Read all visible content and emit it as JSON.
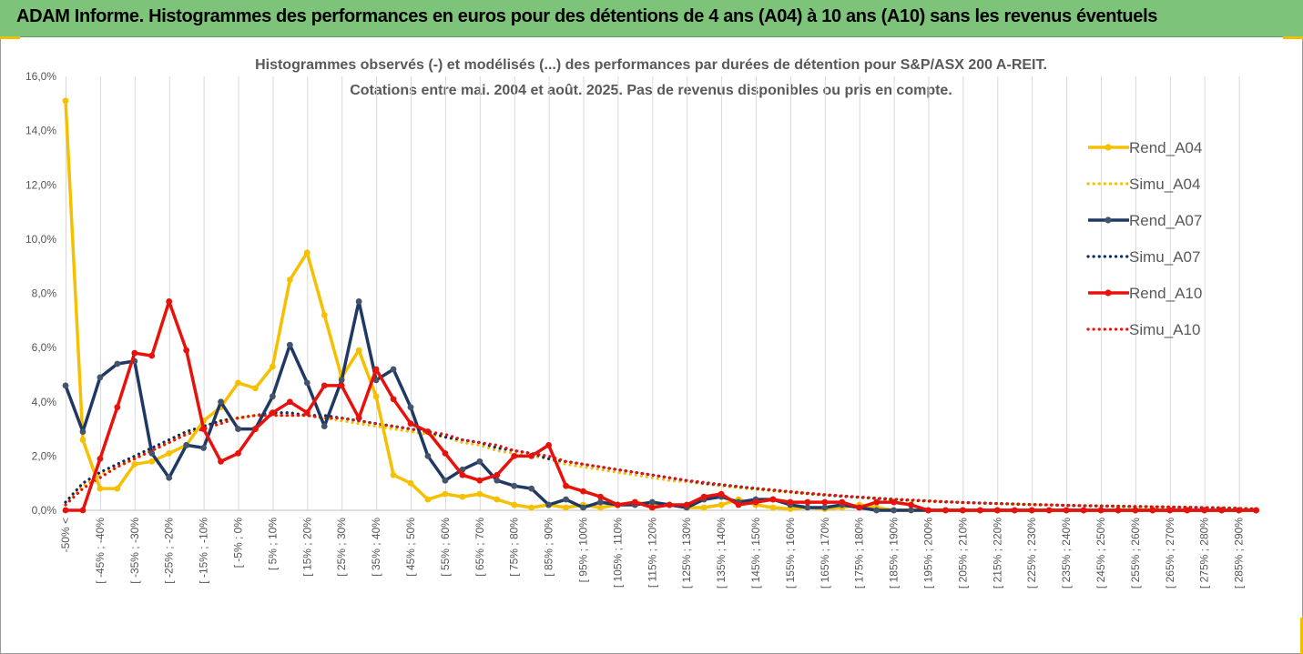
{
  "header": {
    "title": "ADAM Informe. Histogrammes des performances en euros pour des détentions de 4 ans (A04) à 10 ans (A10) sans les revenus éventuels"
  },
  "chart_data": {
    "type": "line",
    "title_lines": [
      "Histogrammes observés (-) et modélisés (...) des performances par durées de détention pour S&P/ASX 200 A-REIT.",
      "Cotations entre mai. 2004 et août. 2025. Pas de revenus disponibles ou pris en compte."
    ],
    "ylim": [
      0,
      0.16
    ],
    "yticks": [
      0,
      0.02,
      0.04,
      0.06,
      0.08,
      0.1,
      0.12,
      0.14,
      0.16
    ],
    "ytick_labels": [
      "0,0%",
      "2,0%",
      "4,0%",
      "6,0%",
      "8,0%",
      "10,0%",
      "12,0%",
      "14,0%",
      "16,0%"
    ],
    "grid": "vertical",
    "legend_position": "right",
    "categories": [
      "-50% <",
      "[ -50% ; -45%",
      "[ -45% ; -40%",
      "[ -40% ; -35%",
      "[ -35% ; -30%",
      "[ -30% ; -25%",
      "[ -25% ; -20%",
      "[ -20% ; -15%",
      "[ -15% ; -10%",
      "[ -10% ; -5%",
      "[ -5% ; 0%",
      "[ 0% ; 5%",
      "[ 5% ; 10%",
      "[ 10% ; 15%",
      "[ 15% ; 20%",
      "[ 20% ; 25%",
      "[ 25% ; 30%",
      "[ 30% ; 35%",
      "[ 35% ; 40%",
      "[ 40% ; 45%",
      "[ 45% ; 50%",
      "[ 50% ; 55%",
      "[ 55% ; 60%",
      "[ 60% ; 65%",
      "[ 65% ; 70%",
      "[ 70% ; 75%",
      "[ 75% ; 80%",
      "[ 80% ; 85%",
      "[ 85% ; 90%",
      "[ 90% ; 95%",
      "[ 95% ; 100%",
      "[ 100% ; 105%",
      "[ 105% ; 110%",
      "[ 110% ; 115%",
      "[ 115% ; 120%",
      "[ 120% ; 125%",
      "[ 125% ; 130%",
      "[ 130% ; 135%",
      "[ 135% ; 140%",
      "[ 140% ; 145%",
      "[ 145% ; 150%",
      "[ 150% ; 155%",
      "[ 155% ; 160%",
      "[ 160% ; 165%",
      "[ 165% ; 170%",
      "[ 170% ; 175%",
      "[ 175% ; 180%",
      "[ 180% ; 185%",
      "[ 185% ; 190%",
      "[ 190% ; 195%",
      "[ 195% ; 200%",
      "[ 200% ; 205%",
      "[ 205% ; 210%",
      "[ 210% ; 215%",
      "[ 215% ; 220%",
      "[ 220% ; 225%",
      "[ 225% ; 230%",
      "[ 230% ; 235%",
      "[ 235% ; 240%",
      "[ 240% ; 245%",
      "[ 245% ; 250%",
      "[ 250% ; 255%",
      "[ 255% ; 260%",
      "[ 260% ; 265%",
      "[ 265% ; 270%",
      "[ 270% ; 275%",
      "[ 275% ; 280%",
      "[ 280% ; 285%",
      "[ 285% ; 290%",
      "[ 290% ; 295%"
    ],
    "shown_labels": [
      "-50% <",
      "[ -45% ; -40%",
      "[ -35% ; -30%",
      "[ -25% ; -20%",
      "[ -15% ; -10%",
      "[ -5% ; 0%",
      "[ 5% ; 10%",
      "[ 15% ; 20%",
      "[ 25% ; 30%",
      "[ 35% ; 40%",
      "[ 45% ; 50%",
      "[ 55% ; 60%",
      "[ 65% ; 70%",
      "[ 75% ; 80%",
      "[ 85% ; 90%",
      "[ 95% ; 100%",
      "[ 105% ; 110%",
      "[ 115% ; 120%",
      "[ 125% ; 130%",
      "[ 135% ; 140%",
      "[ 145% ; 150%",
      "[ 155% ; 160%",
      "[ 165% ; 170%",
      "[ 175% ; 180%",
      "[ 185% ; 190%",
      "[ 195% ; 200%",
      "[ 205% ; 210%",
      "[ 215% ; 220%",
      "[ 225% ; 230%",
      "[ 235% ; 240%",
      "[ 245% ; 250%",
      "[ 255% ; 260%",
      "[ 265% ; 270%",
      "[ 275% ; 280%",
      "[ 285% ; 290%"
    ],
    "series": [
      {
        "name": "Simu_A04",
        "style": "dotted",
        "color": "#f5c000",
        "values": [
          0.002,
          0.009,
          0.013,
          0.016,
          0.019,
          0.022,
          0.025,
          0.028,
          0.031,
          0.033,
          0.034,
          0.035,
          0.035,
          0.035,
          0.035,
          0.034,
          0.033,
          0.032,
          0.031,
          0.03,
          0.029,
          0.028,
          0.027,
          0.025,
          0.024,
          0.022,
          0.021,
          0.02,
          0.019,
          0.017,
          0.016,
          0.015,
          0.014,
          0.013,
          0.012,
          0.011,
          0.0105,
          0.0097,
          0.009,
          0.0083,
          0.0077,
          0.0071,
          0.0066,
          0.006,
          0.0055,
          0.0051,
          0.0047,
          0.0043,
          0.0039,
          0.0036,
          0.0033,
          0.0031,
          0.0028,
          0.0026,
          0.0024,
          0.0022,
          0.002,
          0.0019,
          0.0018,
          0.0016,
          0.0015,
          0.0014,
          0.0013,
          0.0012,
          0.0011,
          0.001,
          0.0009,
          0.0008,
          0.0006,
          0.0004
        ]
      },
      {
        "name": "Simu_A07",
        "style": "dotted",
        "color": "#0d2a5c",
        "values": [
          0.003,
          0.01,
          0.014,
          0.017,
          0.02,
          0.023,
          0.026,
          0.029,
          0.031,
          0.033,
          0.034,
          0.035,
          0.036,
          0.036,
          0.035,
          0.035,
          0.034,
          0.033,
          0.032,
          0.031,
          0.03,
          0.029,
          0.027,
          0.026,
          0.025,
          0.023,
          0.022,
          0.021,
          0.019,
          0.018,
          0.017,
          0.016,
          0.015,
          0.014,
          0.013,
          0.012,
          0.011,
          0.01,
          0.0094,
          0.0087,
          0.008,
          0.0074,
          0.0068,
          0.0062,
          0.0057,
          0.0052,
          0.0048,
          0.0044,
          0.004,
          0.0037,
          0.0034,
          0.0031,
          0.0029,
          0.0027,
          0.0025,
          0.0023,
          0.0021,
          0.002,
          0.0018,
          0.0017,
          0.0016,
          0.0015,
          0.0014,
          0.0013,
          0.0012,
          0.0011,
          0.001,
          0.0009,
          0.0007,
          0.0005
        ]
      },
      {
        "name": "Simu_A10",
        "style": "dotted",
        "color": "#e8120c",
        "values": [
          0.002,
          0.008,
          0.012,
          0.016,
          0.019,
          0.022,
          0.025,
          0.028,
          0.03,
          0.032,
          0.034,
          0.035,
          0.035,
          0.035,
          0.035,
          0.034,
          0.034,
          0.033,
          0.032,
          0.031,
          0.03,
          0.029,
          0.028,
          0.026,
          0.025,
          0.024,
          0.022,
          0.021,
          0.02,
          0.018,
          0.017,
          0.016,
          0.015,
          0.014,
          0.013,
          0.012,
          0.011,
          0.0103,
          0.0095,
          0.0088,
          0.0081,
          0.0075,
          0.0069,
          0.0063,
          0.0058,
          0.0053,
          0.0049,
          0.0045,
          0.0041,
          0.0038,
          0.0035,
          0.0032,
          0.0029,
          0.0027,
          0.0025,
          0.0023,
          0.0021,
          0.002,
          0.0018,
          0.0017,
          0.0016,
          0.0015,
          0.0014,
          0.0013,
          0.0012,
          0.0011,
          0.001,
          0.0009,
          0.0007,
          0.0005
        ]
      },
      {
        "name": "Rend_A04",
        "style": "solid",
        "color": "#f5c000",
        "values": [
          0.151,
          0.026,
          0.008,
          0.008,
          0.017,
          0.018,
          0.021,
          0.024,
          0.033,
          0.038,
          0.047,
          0.045,
          0.053,
          0.085,
          0.095,
          0.072,
          0.049,
          0.059,
          0.042,
          0.013,
          0.01,
          0.004,
          0.006,
          0.005,
          0.006,
          0.004,
          0.002,
          0.001,
          0.002,
          0.001,
          0.002,
          0.001,
          0.002,
          0.003,
          0.002,
          0.002,
          0.001,
          0.001,
          0.002,
          0.004,
          0.002,
          0.001,
          0.0005,
          0.001,
          0.0005,
          0.001,
          0.002,
          0.001,
          0.0,
          0.0,
          0.0,
          0.0,
          0.0,
          0.0,
          0.0,
          0.0,
          0.0,
          0.0,
          0.0,
          0.0,
          0.0,
          0.0,
          0.0,
          0.0,
          0.0,
          0.0,
          0.0,
          0.0,
          0.0,
          0.0
        ]
      },
      {
        "name": "Rend_A07",
        "style": "solid",
        "color": "#1f3864",
        "values": [
          0.046,
          0.029,
          0.049,
          0.054,
          0.055,
          0.021,
          0.012,
          0.024,
          0.023,
          0.04,
          0.03,
          0.03,
          0.042,
          0.061,
          0.047,
          0.031,
          0.048,
          0.077,
          0.048,
          0.052,
          0.038,
          0.02,
          0.011,
          0.015,
          0.018,
          0.011,
          0.009,
          0.008,
          0.002,
          0.004,
          0.001,
          0.003,
          0.002,
          0.002,
          0.003,
          0.002,
          0.001,
          0.004,
          0.005,
          0.003,
          0.004,
          0.004,
          0.002,
          0.001,
          0.001,
          0.002,
          0.001,
          0.0,
          0.0,
          0.0,
          0.0,
          0.0,
          0.0,
          0.0,
          0.0,
          0.0,
          0.0,
          0.0,
          0.0,
          0.0,
          0.0,
          0.0,
          0.0,
          0.0,
          0.0,
          0.0,
          0.0,
          0.0,
          0.0,
          0.0
        ]
      },
      {
        "name": "Rend_A10",
        "style": "solid",
        "color": "#e8120c",
        "values": [
          0.0,
          0.0,
          0.019,
          0.038,
          0.058,
          0.057,
          0.077,
          0.059,
          0.03,
          0.018,
          0.021,
          0.03,
          0.036,
          0.04,
          0.036,
          0.046,
          0.046,
          0.034,
          0.052,
          0.041,
          0.032,
          0.029,
          0.021,
          0.013,
          0.011,
          0.013,
          0.02,
          0.02,
          0.024,
          0.009,
          0.007,
          0.005,
          0.002,
          0.003,
          0.001,
          0.002,
          0.002,
          0.005,
          0.006,
          0.002,
          0.003,
          0.004,
          0.003,
          0.003,
          0.003,
          0.003,
          0.001,
          0.003,
          0.003,
          0.002,
          0.0,
          0.0,
          0.0,
          0.0,
          0.0,
          0.0,
          0.0,
          0.0,
          0.0,
          0.0,
          0.0,
          0.0,
          0.0,
          0.0,
          0.0,
          0.0,
          0.0,
          0.0,
          0.0,
          0.0
        ]
      }
    ],
    "legend_order": [
      "Rend_A04",
      "Simu_A04",
      "Rend_A07",
      "Simu_A07",
      "Rend_A10",
      "Simu_A10"
    ]
  }
}
